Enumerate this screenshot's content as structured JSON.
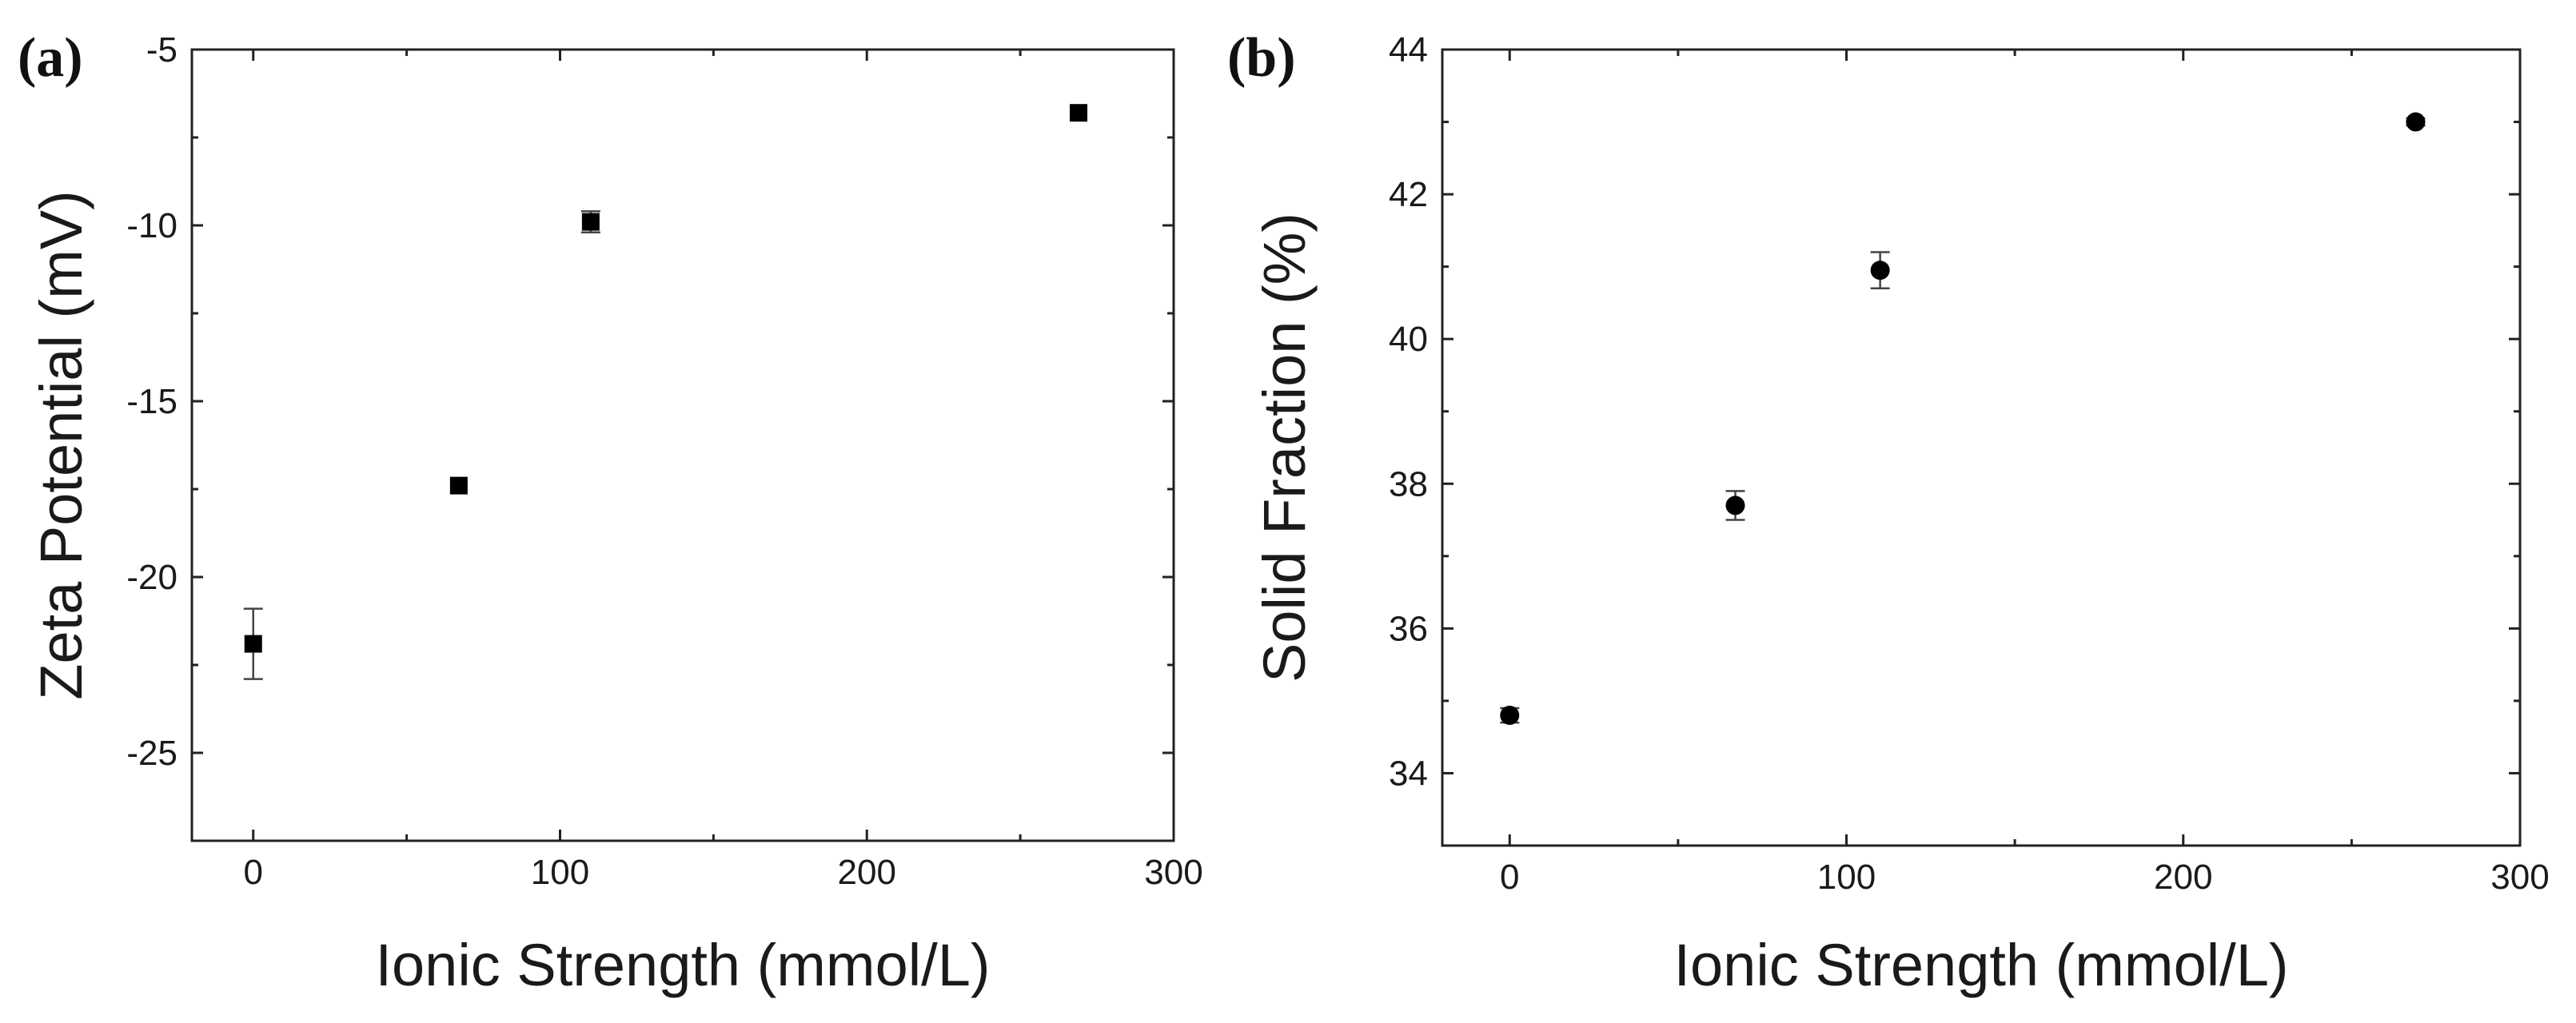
{
  "chart_data": [
    {
      "panel": "(a)",
      "type": "scatter",
      "xlabel": "Ionic Strength (mmol/L)",
      "ylabel": "Zeta Potential (mV)",
      "xlim": [
        -20,
        300
      ],
      "ylim": [
        -27.5,
        -5
      ],
      "xticks": [
        0,
        100,
        200,
        300
      ],
      "yticks": [
        -25,
        -20,
        -15,
        -10,
        -5
      ],
      "marker": "square",
      "points": [
        {
          "x": 0,
          "y": -21.9,
          "err": 1.0
        },
        {
          "x": 67,
          "y": -17.4,
          "err": 0.0
        },
        {
          "x": 110,
          "y": -9.9,
          "err": 0.3
        },
        {
          "x": 269,
          "y": -6.8,
          "err": 0.0
        }
      ]
    },
    {
      "panel": "(b)",
      "type": "scatter",
      "xlabel": "Ionic Strength (mmol/L)",
      "ylabel": "Solid Fraction (%)",
      "xlim": [
        -20,
        300
      ],
      "ylim": [
        33,
        44
      ],
      "xticks": [
        0,
        100,
        200,
        300
      ],
      "yticks": [
        34,
        36,
        38,
        40,
        42,
        44
      ],
      "marker": "circle",
      "points": [
        {
          "x": 0,
          "y": 34.8,
          "err": 0.1
        },
        {
          "x": 67,
          "y": 37.7,
          "err": 0.2
        },
        {
          "x": 110,
          "y": 40.95,
          "err": 0.25
        },
        {
          "x": 269,
          "y": 43.0,
          "err": 0.05
        }
      ]
    }
  ],
  "colors": {
    "marker": "#000000",
    "axis": "#222222"
  }
}
